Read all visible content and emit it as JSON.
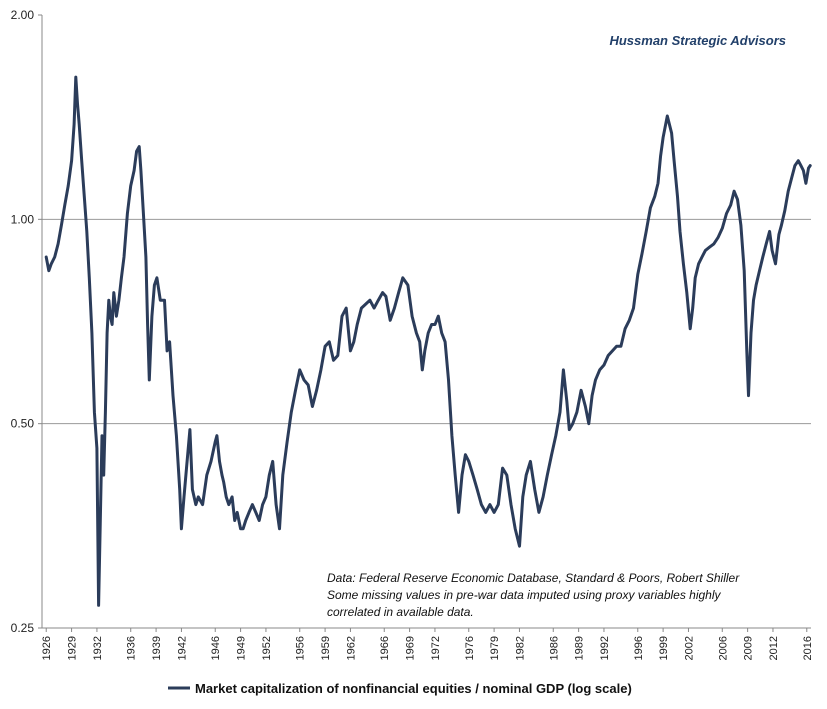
{
  "colors": {
    "series": "#2b3c5a",
    "brand": "#22406a",
    "grid": "#9a9a9a",
    "axis": "#888888"
  },
  "chart_data": {
    "type": "line",
    "title": "",
    "brand": "Hussman Strategic Advisors",
    "yscale": "log",
    "ylim": [
      0.25,
      2.0
    ],
    "yticks": [
      2.0,
      1.0,
      0.5,
      0.25
    ],
    "ytick_labels": [
      "2.00",
      "1.00",
      "0.50",
      "0.25"
    ],
    "xlim": [
      1925.5,
      2016.5
    ],
    "xticks": [
      1926,
      1929,
      1932,
      1936,
      1939,
      1942,
      1946,
      1949,
      1952,
      1956,
      1959,
      1962,
      1966,
      1969,
      1972,
      1976,
      1979,
      1982,
      1986,
      1989,
      1992,
      1996,
      1999,
      2002,
      2006,
      2009,
      2012,
      2016
    ],
    "xtick_labels": [
      "1926",
      "1929",
      "1932",
      "1936",
      "1939",
      "1942",
      "1946",
      "1949",
      "1952",
      "1956",
      "1959",
      "1962",
      "1966",
      "1969",
      "1972",
      "1976",
      "1979",
      "1982",
      "1986",
      "1989",
      "1992",
      "1996",
      "1999",
      "2002",
      "2006",
      "2009",
      "2012",
      "2016"
    ],
    "gridlines": [
      1.0,
      0.5
    ],
    "legend_position": "bottom-center",
    "annotation": [
      "Data: Federal Reserve Economic Database, Standard & Poors, Robert Shiller",
      "Some missing values in pre-war data imputed using proxy variables highly",
      "correlated in  available data."
    ],
    "series": [
      {
        "name": "Market capitalization of nonfinancial equities / nominal GDP (log scale)",
        "x": [
          1926.0,
          1926.3,
          1926.6,
          1927.0,
          1927.4,
          1927.8,
          1928.2,
          1928.6,
          1929.0,
          1929.3,
          1929.5,
          1929.7,
          1929.9,
          1930.2,
          1930.5,
          1930.8,
          1931.1,
          1931.4,
          1931.7,
          1932.0,
          1932.2,
          1932.4,
          1932.6,
          1932.8,
          1933.0,
          1933.2,
          1933.4,
          1933.6,
          1933.8,
          1934.0,
          1934.3,
          1934.6,
          1934.9,
          1935.2,
          1935.6,
          1936.0,
          1936.4,
          1936.7,
          1937.0,
          1937.2,
          1937.5,
          1937.8,
          1938.0,
          1938.2,
          1938.5,
          1938.8,
          1939.1,
          1939.5,
          1940.0,
          1940.3,
          1940.6,
          1941.0,
          1941.4,
          1941.8,
          1942.0,
          1942.3,
          1942.6,
          1943.0,
          1943.3,
          1943.7,
          1944.0,
          1944.5,
          1945.0,
          1945.5,
          1946.0,
          1946.2,
          1946.5,
          1946.8,
          1947.0,
          1947.3,
          1947.6,
          1948.0,
          1948.3,
          1948.6,
          1949.0,
          1949.3,
          1949.6,
          1950.0,
          1950.4,
          1950.8,
          1951.2,
          1951.6,
          1952.0,
          1952.4,
          1952.8,
          1953.2,
          1953.6,
          1954.0,
          1954.5,
          1955.0,
          1955.5,
          1956.0,
          1956.5,
          1957.0,
          1957.5,
          1958.0,
          1958.5,
          1959.0,
          1959.5,
          1960.0,
          1960.5,
          1961.0,
          1961.5,
          1962.0,
          1962.4,
          1962.8,
          1963.3,
          1963.8,
          1964.3,
          1964.8,
          1965.3,
          1965.8,
          1966.2,
          1966.7,
          1967.2,
          1967.7,
          1968.2,
          1968.8,
          1969.3,
          1969.8,
          1970.2,
          1970.5,
          1970.8,
          1971.2,
          1971.6,
          1972.0,
          1972.4,
          1972.8,
          1973.2,
          1973.6,
          1974.0,
          1974.4,
          1974.8,
          1975.2,
          1975.6,
          1976.0,
          1976.5,
          1977.0,
          1977.5,
          1978.0,
          1978.5,
          1979.0,
          1979.5,
          1980.0,
          1980.5,
          1981.0,
          1981.5,
          1982.0,
          1982.4,
          1982.8,
          1983.3,
          1983.8,
          1984.3,
          1984.8,
          1985.3,
          1985.8,
          1986.3,
          1986.8,
          1987.2,
          1987.6,
          1987.9,
          1988.3,
          1988.8,
          1989.3,
          1989.8,
          1990.2,
          1990.6,
          1991.0,
          1991.5,
          1992.0,
          1992.5,
          1993.0,
          1993.5,
          1994.0,
          1994.5,
          1995.0,
          1995.5,
          1996.0,
          1996.5,
          1997.0,
          1997.5,
          1998.0,
          1998.4,
          1998.7,
          1999.0,
          1999.5,
          2000.0,
          2000.3,
          2000.7,
          2001.0,
          2001.4,
          2001.8,
          2002.2,
          2002.5,
          2002.8,
          2003.2,
          2003.6,
          2004.0,
          2004.5,
          2005.0,
          2005.5,
          2006.0,
          2006.5,
          2007.0,
          2007.4,
          2007.8,
          2008.2,
          2008.6,
          2008.9,
          2009.1,
          2009.4,
          2009.7,
          2010.0,
          2010.4,
          2010.8,
          2011.2,
          2011.6,
          2011.9,
          2012.3,
          2012.7,
          2013.0,
          2013.4,
          2013.8,
          2014.2,
          2014.6,
          2015.0,
          2015.3,
          2015.6,
          2015.9,
          2016.2,
          2016.4
        ],
        "values": [
          0.88,
          0.84,
          0.86,
          0.88,
          0.92,
          0.98,
          1.05,
          1.12,
          1.22,
          1.38,
          1.62,
          1.48,
          1.38,
          1.22,
          1.08,
          0.96,
          0.82,
          0.68,
          0.52,
          0.46,
          0.27,
          0.36,
          0.48,
          0.42,
          0.52,
          0.68,
          0.76,
          0.72,
          0.7,
          0.78,
          0.72,
          0.76,
          0.82,
          0.88,
          1.02,
          1.12,
          1.18,
          1.26,
          1.28,
          1.18,
          1.02,
          0.88,
          0.7,
          0.58,
          0.72,
          0.8,
          0.82,
          0.76,
          0.76,
          0.64,
          0.66,
          0.55,
          0.48,
          0.4,
          0.35,
          0.39,
          0.43,
          0.49,
          0.4,
          0.38,
          0.39,
          0.38,
          0.42,
          0.44,
          0.47,
          0.48,
          0.44,
          0.42,
          0.41,
          0.39,
          0.38,
          0.39,
          0.36,
          0.37,
          0.35,
          0.35,
          0.36,
          0.37,
          0.38,
          0.37,
          0.36,
          0.38,
          0.39,
          0.42,
          0.44,
          0.38,
          0.35,
          0.42,
          0.47,
          0.52,
          0.56,
          0.6,
          0.58,
          0.57,
          0.53,
          0.56,
          0.6,
          0.65,
          0.66,
          0.62,
          0.63,
          0.72,
          0.74,
          0.64,
          0.66,
          0.7,
          0.74,
          0.75,
          0.76,
          0.74,
          0.76,
          0.78,
          0.77,
          0.71,
          0.74,
          0.78,
          0.82,
          0.8,
          0.72,
          0.68,
          0.66,
          0.6,
          0.64,
          0.68,
          0.7,
          0.7,
          0.72,
          0.68,
          0.66,
          0.58,
          0.48,
          0.42,
          0.37,
          0.42,
          0.45,
          0.44,
          0.42,
          0.4,
          0.38,
          0.37,
          0.38,
          0.37,
          0.38,
          0.43,
          0.42,
          0.38,
          0.35,
          0.33,
          0.39,
          0.42,
          0.44,
          0.4,
          0.37,
          0.39,
          0.42,
          0.45,
          0.48,
          0.52,
          0.6,
          0.54,
          0.49,
          0.5,
          0.52,
          0.56,
          0.53,
          0.5,
          0.55,
          0.58,
          0.6,
          0.61,
          0.63,
          0.64,
          0.65,
          0.65,
          0.69,
          0.71,
          0.74,
          0.83,
          0.89,
          0.96,
          1.04,
          1.08,
          1.13,
          1.24,
          1.32,
          1.42,
          1.34,
          1.22,
          1.08,
          0.96,
          0.86,
          0.78,
          0.69,
          0.74,
          0.82,
          0.86,
          0.88,
          0.9,
          0.91,
          0.92,
          0.94,
          0.97,
          1.02,
          1.05,
          1.1,
          1.07,
          0.98,
          0.84,
          0.64,
          0.55,
          0.68,
          0.76,
          0.8,
          0.84,
          0.88,
          0.92,
          0.96,
          0.9,
          0.86,
          0.95,
          0.98,
          1.03,
          1.1,
          1.15,
          1.2,
          1.22,
          1.2,
          1.18,
          1.13,
          1.19,
          1.2
        ]
      }
    ]
  }
}
